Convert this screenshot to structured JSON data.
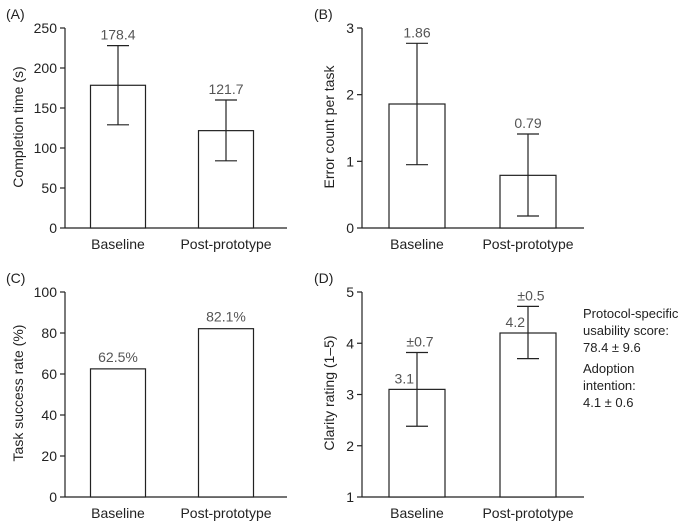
{
  "chart_data": [
    {
      "type": "bar",
      "panel_label": "(A)",
      "categories": [
        "Baseline",
        "Post-prototype"
      ],
      "values": [
        178.4,
        121.7
      ],
      "error_bars": [
        [
          129,
          228
        ],
        [
          84,
          160
        ]
      ],
      "value_labels": [
        "178.4",
        "121.7"
      ],
      "ylabel": "Completion time (s)",
      "ylim": [
        0,
        250
      ],
      "yticks": [
        0,
        50,
        100,
        150,
        200,
        250
      ],
      "ytick_labels": [
        "0",
        "50",
        "100",
        "150",
        "200",
        "250"
      ]
    },
    {
      "type": "bar",
      "panel_label": "(B)",
      "categories": [
        "Baseline",
        "Post-prototype"
      ],
      "values": [
        1.86,
        0.79
      ],
      "error_bars": [
        [
          0.95,
          2.77
        ],
        [
          0.18,
          1.41
        ]
      ],
      "value_labels": [
        "1.86",
        "0.79"
      ],
      "ylabel": "Error count per task",
      "ylim": [
        0,
        3
      ],
      "yticks": [
        0,
        1,
        2,
        3
      ],
      "ytick_labels": [
        "0",
        "1",
        "2",
        "3"
      ]
    },
    {
      "type": "bar",
      "panel_label": "(C)",
      "categories": [
        "Baseline",
        "Post-prototype"
      ],
      "values": [
        62.5,
        82.1
      ],
      "value_labels": [
        "62.5%",
        "82.1%"
      ],
      "ylabel": "Task success rate (%)",
      "ylim": [
        0,
        100
      ],
      "yticks": [
        0,
        20,
        40,
        60,
        80,
        100
      ],
      "ytick_labels": [
        "0",
        "20",
        "40",
        "60",
        "80",
        "100"
      ]
    },
    {
      "type": "bar",
      "panel_label": "(D)",
      "categories": [
        "Baseline",
        "Post-prototype"
      ],
      "values": [
        3.1,
        4.2
      ],
      "error_bars": [
        [
          2.38,
          3.82
        ],
        [
          3.7,
          4.72
        ]
      ],
      "value_labels": [
        "3.1",
        "4.2"
      ],
      "sd_labels": [
        "±0.7",
        "±0.5"
      ],
      "ylabel": "Clarity rating (1–5)",
      "ylim": [
        1,
        5
      ],
      "yticks": [
        1,
        2,
        3,
        4,
        5
      ],
      "ytick_labels": [
        "1",
        "2",
        "3",
        "4",
        "5"
      ]
    }
  ],
  "side_note": {
    "score_lines": [
      "Protocol-specific",
      "usability score:",
      "78.4 ± 9.6"
    ],
    "adoption_lines": [
      "Adoption",
      "intention:",
      "4.1 ± 0.6"
    ]
  }
}
